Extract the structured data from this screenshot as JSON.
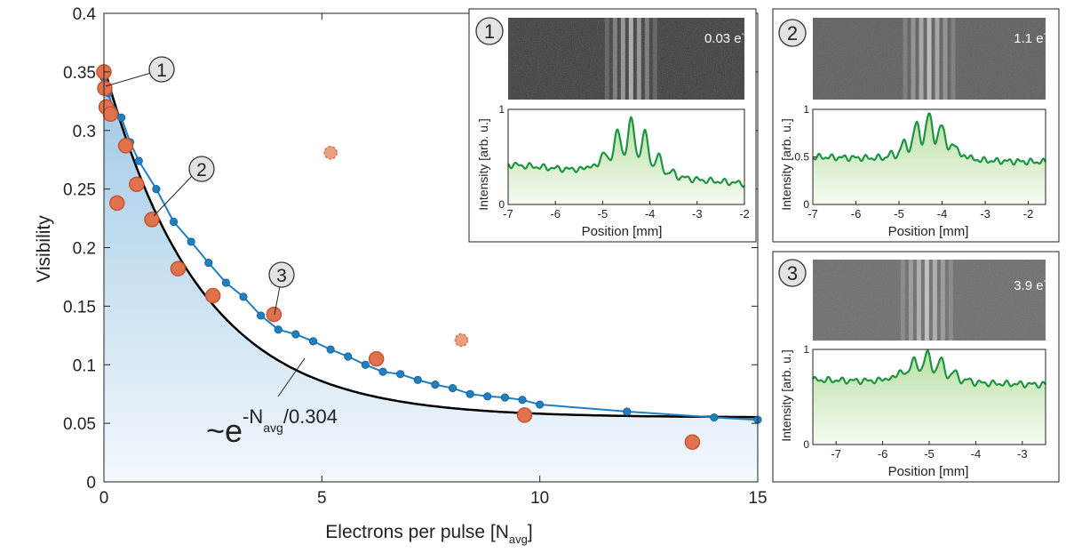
{
  "chart_data": [
    {
      "type": "scatter",
      "xlabel": "Electrons per pulse [N",
      "xlabel_sub": "avg",
      "xlabel_close": "]",
      "ylabel": "Visibility",
      "xlim": [
        0,
        15
      ],
      "ylim": [
        0,
        0.4
      ],
      "xticks": [
        0,
        5,
        10,
        15
      ],
      "yticks": [
        0,
        0.05,
        0.1,
        0.15,
        0.2,
        0.25,
        0.3,
        0.35,
        0.4
      ],
      "xtick_labels": [
        "0",
        "5",
        "10",
        "15"
      ],
      "ytick_labels": [
        "0",
        "0.05",
        "0.1",
        "0.15",
        "0.2",
        "0.25",
        "0.3",
        "0.35",
        "0.4"
      ],
      "series": [
        {
          "marker": "large-orange-circle",
          "color": "#e0734f",
          "x": [
            0.0,
            0.02,
            0.05,
            0.15,
            0.3,
            0.5,
            0.75,
            1.1,
            1.7,
            2.5,
            3.9,
            6.25,
            9.65,
            13.5
          ],
          "y": [
            0.35,
            0.336,
            0.32,
            0.314,
            0.238,
            0.287,
            0.254,
            0.224,
            0.182,
            0.159,
            0.143,
            0.105,
            0.057,
            0.034
          ]
        },
        {
          "marker": "outlier-dashed-circle",
          "color": "#e8a07e",
          "x": [
            5.2,
            8.2
          ],
          "y": [
            0.281,
            0.121
          ]
        },
        {
          "marker": "small-blue-dot-line",
          "color": "#1f7fc0",
          "x": [
            0.0,
            0.1,
            0.2,
            0.4,
            0.6,
            0.8,
            1.2,
            1.6,
            2.0,
            2.4,
            2.8,
            3.2,
            3.6,
            4.0,
            4.4,
            4.8,
            5.2,
            5.6,
            6.0,
            6.4,
            6.8,
            7.2,
            7.6,
            8.0,
            8.4,
            8.8,
            9.2,
            9.6,
            10.0,
            12.0,
            14.0,
            15.0
          ],
          "y": [
            0.345,
            0.332,
            0.318,
            0.311,
            0.29,
            0.274,
            0.25,
            0.222,
            0.205,
            0.187,
            0.17,
            0.158,
            0.142,
            0.13,
            0.126,
            0.12,
            0.113,
            0.107,
            0.1,
            0.094,
            0.092,
            0.087,
            0.083,
            0.08,
            0.075,
            0.073,
            0.072,
            0.07,
            0.066,
            0.06,
            0.055,
            0.053
          ]
        },
        {
          "marker": "black-fit-curve",
          "color": "#000000",
          "formula": "0.3*exp(-x/2.2)+0.055"
        }
      ],
      "fit_label": {
        "base": "~e",
        "sup1": "-N",
        "sub": "avg",
        "sup2": "/0.304"
      },
      "callouts": [
        "1",
        "2",
        "3"
      ]
    },
    {
      "type": "line",
      "panel": "1",
      "electrons_label": "0.03 e",
      "electrons_sup": "-",
      "xlabel": "Position [mm]",
      "ylabel": "Intensity [arb. u.]",
      "xlim": [
        -7,
        -2
      ],
      "ylim": [
        0,
        1
      ],
      "xticks": [
        -7,
        -6,
        -5,
        -4,
        -3,
        -2
      ],
      "xtick_labels": [
        "-7",
        "-6",
        "-5",
        "-4",
        "-3",
        "-2"
      ],
      "ytick_labels": [
        "0",
        "1"
      ],
      "center": -4.4,
      "baseline": 0.42,
      "peak": 1.0
    },
    {
      "type": "line",
      "panel": "2",
      "electrons_label": "1.1 e",
      "electrons_sup": "-",
      "xlabel": "Position [mm]",
      "ylabel": "Intensity [arb. u.]",
      "xlim": [
        -7,
        -1.6
      ],
      "ylim": [
        0,
        1
      ],
      "xticks": [
        -7,
        -6,
        -5,
        -4,
        -3,
        -2
      ],
      "xtick_labels": [
        "-7",
        "-6",
        "-5",
        "-4",
        "-3",
        "-2"
      ],
      "ytick_labels": [
        "0",
        "0.5",
        "1"
      ],
      "center": -4.3,
      "baseline": 0.5,
      "peak": 1.0
    },
    {
      "type": "line",
      "panel": "3",
      "electrons_label": "3.9 e",
      "electrons_sup": "-",
      "xlabel": "Position [mm]",
      "ylabel": "Intensity [arb. u.]",
      "xlim": [
        -7.5,
        -2.5
      ],
      "ylim": [
        0,
        1
      ],
      "xticks": [
        -7,
        -6,
        -5,
        -4,
        -3
      ],
      "xtick_labels": [
        "-7",
        "-6",
        "-5",
        "-4",
        "-3"
      ],
      "ytick_labels": [
        "0",
        "1"
      ],
      "center": -5.05,
      "baseline": 0.68,
      "peak": 1.0
    }
  ]
}
